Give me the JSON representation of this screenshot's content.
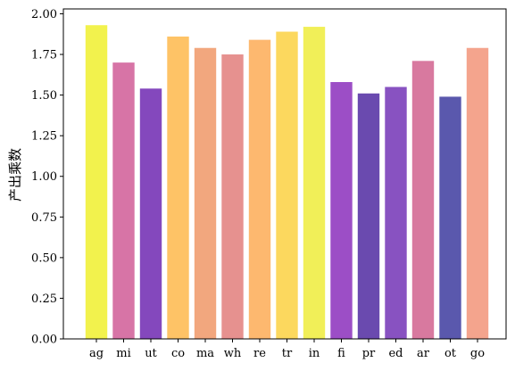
{
  "chart_data": {
    "type": "bar",
    "categories": [
      "ag",
      "mi",
      "ut",
      "co",
      "ma",
      "wh",
      "re",
      "tr",
      "in",
      "fi",
      "pr",
      "ed",
      "ar",
      "ot",
      "go"
    ],
    "values": [
      1.93,
      1.7,
      1.54,
      1.86,
      1.79,
      1.75,
      1.84,
      1.89,
      1.92,
      1.58,
      1.51,
      1.55,
      1.71,
      1.49,
      1.79
    ],
    "colors": [
      "#f2f24d",
      "#d774a6",
      "#8448bd",
      "#fec366",
      "#f2a77e",
      "#e6918f",
      "#fdb86f",
      "#fcd85e",
      "#f1ef58",
      "#9c4ec6",
      "#6a4aaf",
      "#8852c1",
      "#d8799f",
      "#5a58ad",
      "#f4a48d"
    ],
    "title": "",
    "xlabel": "",
    "ylabel": "产出乘数",
    "ylim": [
      0,
      2.0
    ],
    "yticks": [
      "0.00",
      "0.25",
      "0.50",
      "0.75",
      "1.00",
      "1.25",
      "1.50",
      "1.75",
      "2.00"
    ],
    "grid": false,
    "legend": "none"
  }
}
